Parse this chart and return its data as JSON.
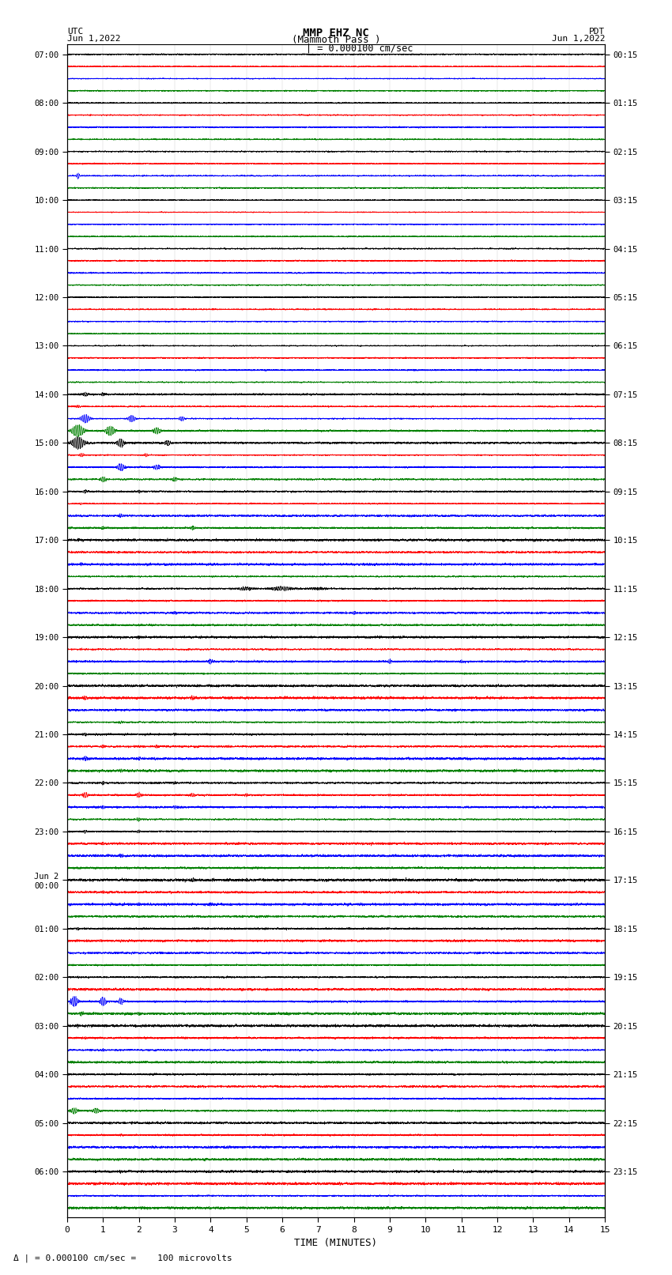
{
  "title_line1": "MMP EHZ NC",
  "title_line2": "(Mammoth Pass )",
  "scale_label": "= 0.000100 cm/sec",
  "bottom_label": "= 0.000100 cm/sec =    100 microvolts",
  "utc_label_line1": "UTC",
  "utc_label_line2": "Jun 1,2022",
  "pdt_label_line1": "PDT",
  "pdt_label_line2": "Jun 1,2022",
  "xlabel": "TIME (MINUTES)",
  "left_times": [
    "07:00",
    "",
    "",
    "",
    "08:00",
    "",
    "",
    "",
    "09:00",
    "",
    "",
    "",
    "10:00",
    "",
    "",
    "",
    "11:00",
    "",
    "",
    "",
    "12:00",
    "",
    "",
    "",
    "13:00",
    "",
    "",
    "",
    "14:00",
    "",
    "",
    "",
    "15:00",
    "",
    "",
    "",
    "16:00",
    "",
    "",
    "",
    "17:00",
    "",
    "",
    "",
    "18:00",
    "",
    "",
    "",
    "19:00",
    "",
    "",
    "",
    "20:00",
    "",
    "",
    "",
    "21:00",
    "",
    "",
    "",
    "22:00",
    "",
    "",
    "",
    "23:00",
    "",
    "",
    "",
    "Jun 2\n00:00",
    "",
    "",
    "",
    "01:00",
    "",
    "",
    "",
    "02:00",
    "",
    "",
    "",
    "03:00",
    "",
    "",
    "",
    "04:00",
    "",
    "",
    "",
    "05:00",
    "",
    "",
    "",
    "06:00",
    "",
    "",
    ""
  ],
  "right_times": [
    "00:15",
    "",
    "",
    "",
    "01:15",
    "",
    "",
    "",
    "02:15",
    "",
    "",
    "",
    "03:15",
    "",
    "",
    "",
    "04:15",
    "",
    "",
    "",
    "05:15",
    "",
    "",
    "",
    "06:15",
    "",
    "",
    "",
    "07:15",
    "",
    "",
    "",
    "08:15",
    "",
    "",
    "",
    "09:15",
    "",
    "",
    "",
    "10:15",
    "",
    "",
    "",
    "11:15",
    "",
    "",
    "",
    "12:15",
    "",
    "",
    "",
    "13:15",
    "",
    "",
    "",
    "14:15",
    "",
    "",
    "",
    "15:15",
    "",
    "",
    "",
    "16:15",
    "",
    "",
    "",
    "17:15",
    "",
    "",
    "",
    "18:15",
    "",
    "",
    "",
    "19:15",
    "",
    "",
    "",
    "20:15",
    "",
    "",
    "",
    "21:15",
    "",
    "",
    "",
    "22:15",
    "",
    "",
    "",
    "23:15",
    "",
    "",
    ""
  ],
  "n_traces": 96,
  "trace_colors_cycle": [
    "black",
    "red",
    "blue",
    "green"
  ],
  "bg_color": "white",
  "xmin": 0,
  "xmax": 15,
  "figsize": [
    8.5,
    16.13
  ],
  "dpi": 100
}
